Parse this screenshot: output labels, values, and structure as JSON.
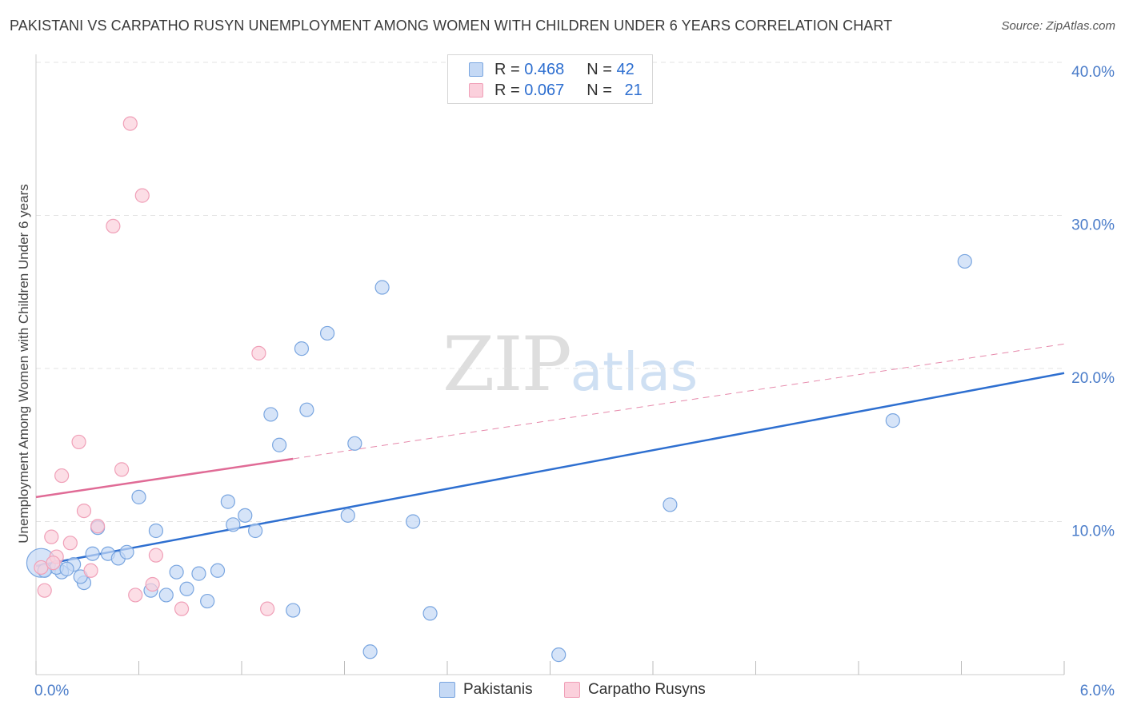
{
  "title": "PAKISTANI VS CARPATHO RUSYN UNEMPLOYMENT AMONG WOMEN WITH CHILDREN UNDER 6 YEARS CORRELATION CHART",
  "source": "Source: ZipAtlas.com",
  "watermark": {
    "zip": "ZIP",
    "atlas": "atlas"
  },
  "legend": {
    "rows": [
      {
        "r_label": "R = ",
        "r_value": "0.468",
        "n_label": "N = ",
        "n_value": "42"
      },
      {
        "r_label": "R = ",
        "r_value": "0.067",
        "n_label": "N = ",
        "n_value": "21"
      }
    ]
  },
  "colors": {
    "pakistanis_fill": "#c5d9f5",
    "pakistanis_stroke": "#7aa6e0",
    "pakistanis_line": "#2e6fd0",
    "rusyn_fill": "#fbd0dc",
    "rusyn_stroke": "#f0a0b8",
    "rusyn_line": "#e06b96",
    "grid": "#e3e3e3",
    "tick_text": "#4a7cc9"
  },
  "chart_data": {
    "type": "scatter",
    "title": "PAKISTANI VS CARPATHO RUSYN UNEMPLOYMENT AMONG WOMEN WITH CHILDREN UNDER 6 YEARS CORRELATION CHART",
    "xlabel": "",
    "ylabel": "Unemployment Among Women with Children Under 6 years",
    "xlim": [
      0,
      6
    ],
    "ylim": [
      0,
      40
    ],
    "x_tick_labels": [
      "0.0%",
      "6.0%"
    ],
    "y_ticks": [
      10,
      20,
      30,
      40
    ],
    "y_tick_labels": [
      "10.0%",
      "20.0%",
      "30.0%",
      "40.0%"
    ],
    "series": [
      {
        "name": "Pakistanis",
        "r": 0.468,
        "n": 42,
        "trend": {
          "x": [
            0,
            6
          ],
          "y": [
            7.1,
            19.7
          ],
          "dashed_extension": false
        },
        "points": [
          {
            "x": 0.03,
            "y": 7.3,
            "big": true
          },
          {
            "x": 0.15,
            "y": 6.7
          },
          {
            "x": 0.22,
            "y": 7.2
          },
          {
            "x": 0.28,
            "y": 6.0
          },
          {
            "x": 0.33,
            "y": 7.9
          },
          {
            "x": 0.36,
            "y": 9.6
          },
          {
            "x": 0.42,
            "y": 7.9
          },
          {
            "x": 0.48,
            "y": 7.6
          },
          {
            "x": 0.53,
            "y": 8.0
          },
          {
            "x": 0.6,
            "y": 11.6
          },
          {
            "x": 0.67,
            "y": 5.5
          },
          {
            "x": 0.7,
            "y": 9.4
          },
          {
            "x": 0.76,
            "y": 5.2
          },
          {
            "x": 0.82,
            "y": 6.7
          },
          {
            "x": 0.88,
            "y": 5.6
          },
          {
            "x": 0.95,
            "y": 6.6
          },
          {
            "x": 1.0,
            "y": 4.8
          },
          {
            "x": 1.06,
            "y": 6.8
          },
          {
            "x": 1.12,
            "y": 11.3
          },
          {
            "x": 1.15,
            "y": 9.8
          },
          {
            "x": 1.22,
            "y": 10.4
          },
          {
            "x": 1.28,
            "y": 9.4
          },
          {
            "x": 1.37,
            "y": 17.0
          },
          {
            "x": 1.42,
            "y": 15.0
          },
          {
            "x": 1.5,
            "y": 4.2
          },
          {
            "x": 1.55,
            "y": 21.3
          },
          {
            "x": 1.58,
            "y": 17.3
          },
          {
            "x": 1.7,
            "y": 22.3
          },
          {
            "x": 1.82,
            "y": 10.4
          },
          {
            "x": 1.86,
            "y": 15.1
          },
          {
            "x": 1.95,
            "y": 1.5
          },
          {
            "x": 2.02,
            "y": 25.3
          },
          {
            "x": 2.2,
            "y": 10.0
          },
          {
            "x": 2.3,
            "y": 4.0
          },
          {
            "x": 3.05,
            "y": 1.3
          },
          {
            "x": 3.7,
            "y": 11.1
          },
          {
            "x": 5.0,
            "y": 16.6
          },
          {
            "x": 5.42,
            "y": 27.0
          },
          {
            "x": 0.12,
            "y": 7.0
          },
          {
            "x": 0.18,
            "y": 6.9
          },
          {
            "x": 0.26,
            "y": 6.4
          },
          {
            "x": 0.05,
            "y": 6.8
          }
        ]
      },
      {
        "name": "Carpatho Rusyns",
        "r": 0.067,
        "n": 21,
        "trend": {
          "x": [
            0,
            1.5
          ],
          "y": [
            11.6,
            14.1
          ],
          "dashed_extension": {
            "x": [
              1.5,
              6
            ],
            "y": [
              14.1,
              21.6
            ]
          }
        },
        "points": [
          {
            "x": 0.03,
            "y": 7.0
          },
          {
            "x": 0.05,
            "y": 5.5
          },
          {
            "x": 0.09,
            "y": 9.0
          },
          {
            "x": 0.12,
            "y": 7.7
          },
          {
            "x": 0.15,
            "y": 13.0
          },
          {
            "x": 0.2,
            "y": 8.6
          },
          {
            "x": 0.25,
            "y": 15.2
          },
          {
            "x": 0.28,
            "y": 10.7
          },
          {
            "x": 0.32,
            "y": 6.8
          },
          {
            "x": 0.36,
            "y": 9.7
          },
          {
            "x": 0.45,
            "y": 29.3
          },
          {
            "x": 0.5,
            "y": 13.4
          },
          {
            "x": 0.55,
            "y": 36.0
          },
          {
            "x": 0.58,
            "y": 5.2
          },
          {
            "x": 0.62,
            "y": 31.3
          },
          {
            "x": 0.68,
            "y": 5.9
          },
          {
            "x": 0.7,
            "y": 7.8
          },
          {
            "x": 0.85,
            "y": 4.3
          },
          {
            "x": 1.3,
            "y": 21.0
          },
          {
            "x": 1.35,
            "y": 4.3
          },
          {
            "x": 0.1,
            "y": 7.3
          }
        ]
      }
    ],
    "legend": {
      "position": "bottom-center",
      "entries": [
        "Pakistanis",
        "Carpatho Rusyns"
      ]
    },
    "grid": true
  }
}
